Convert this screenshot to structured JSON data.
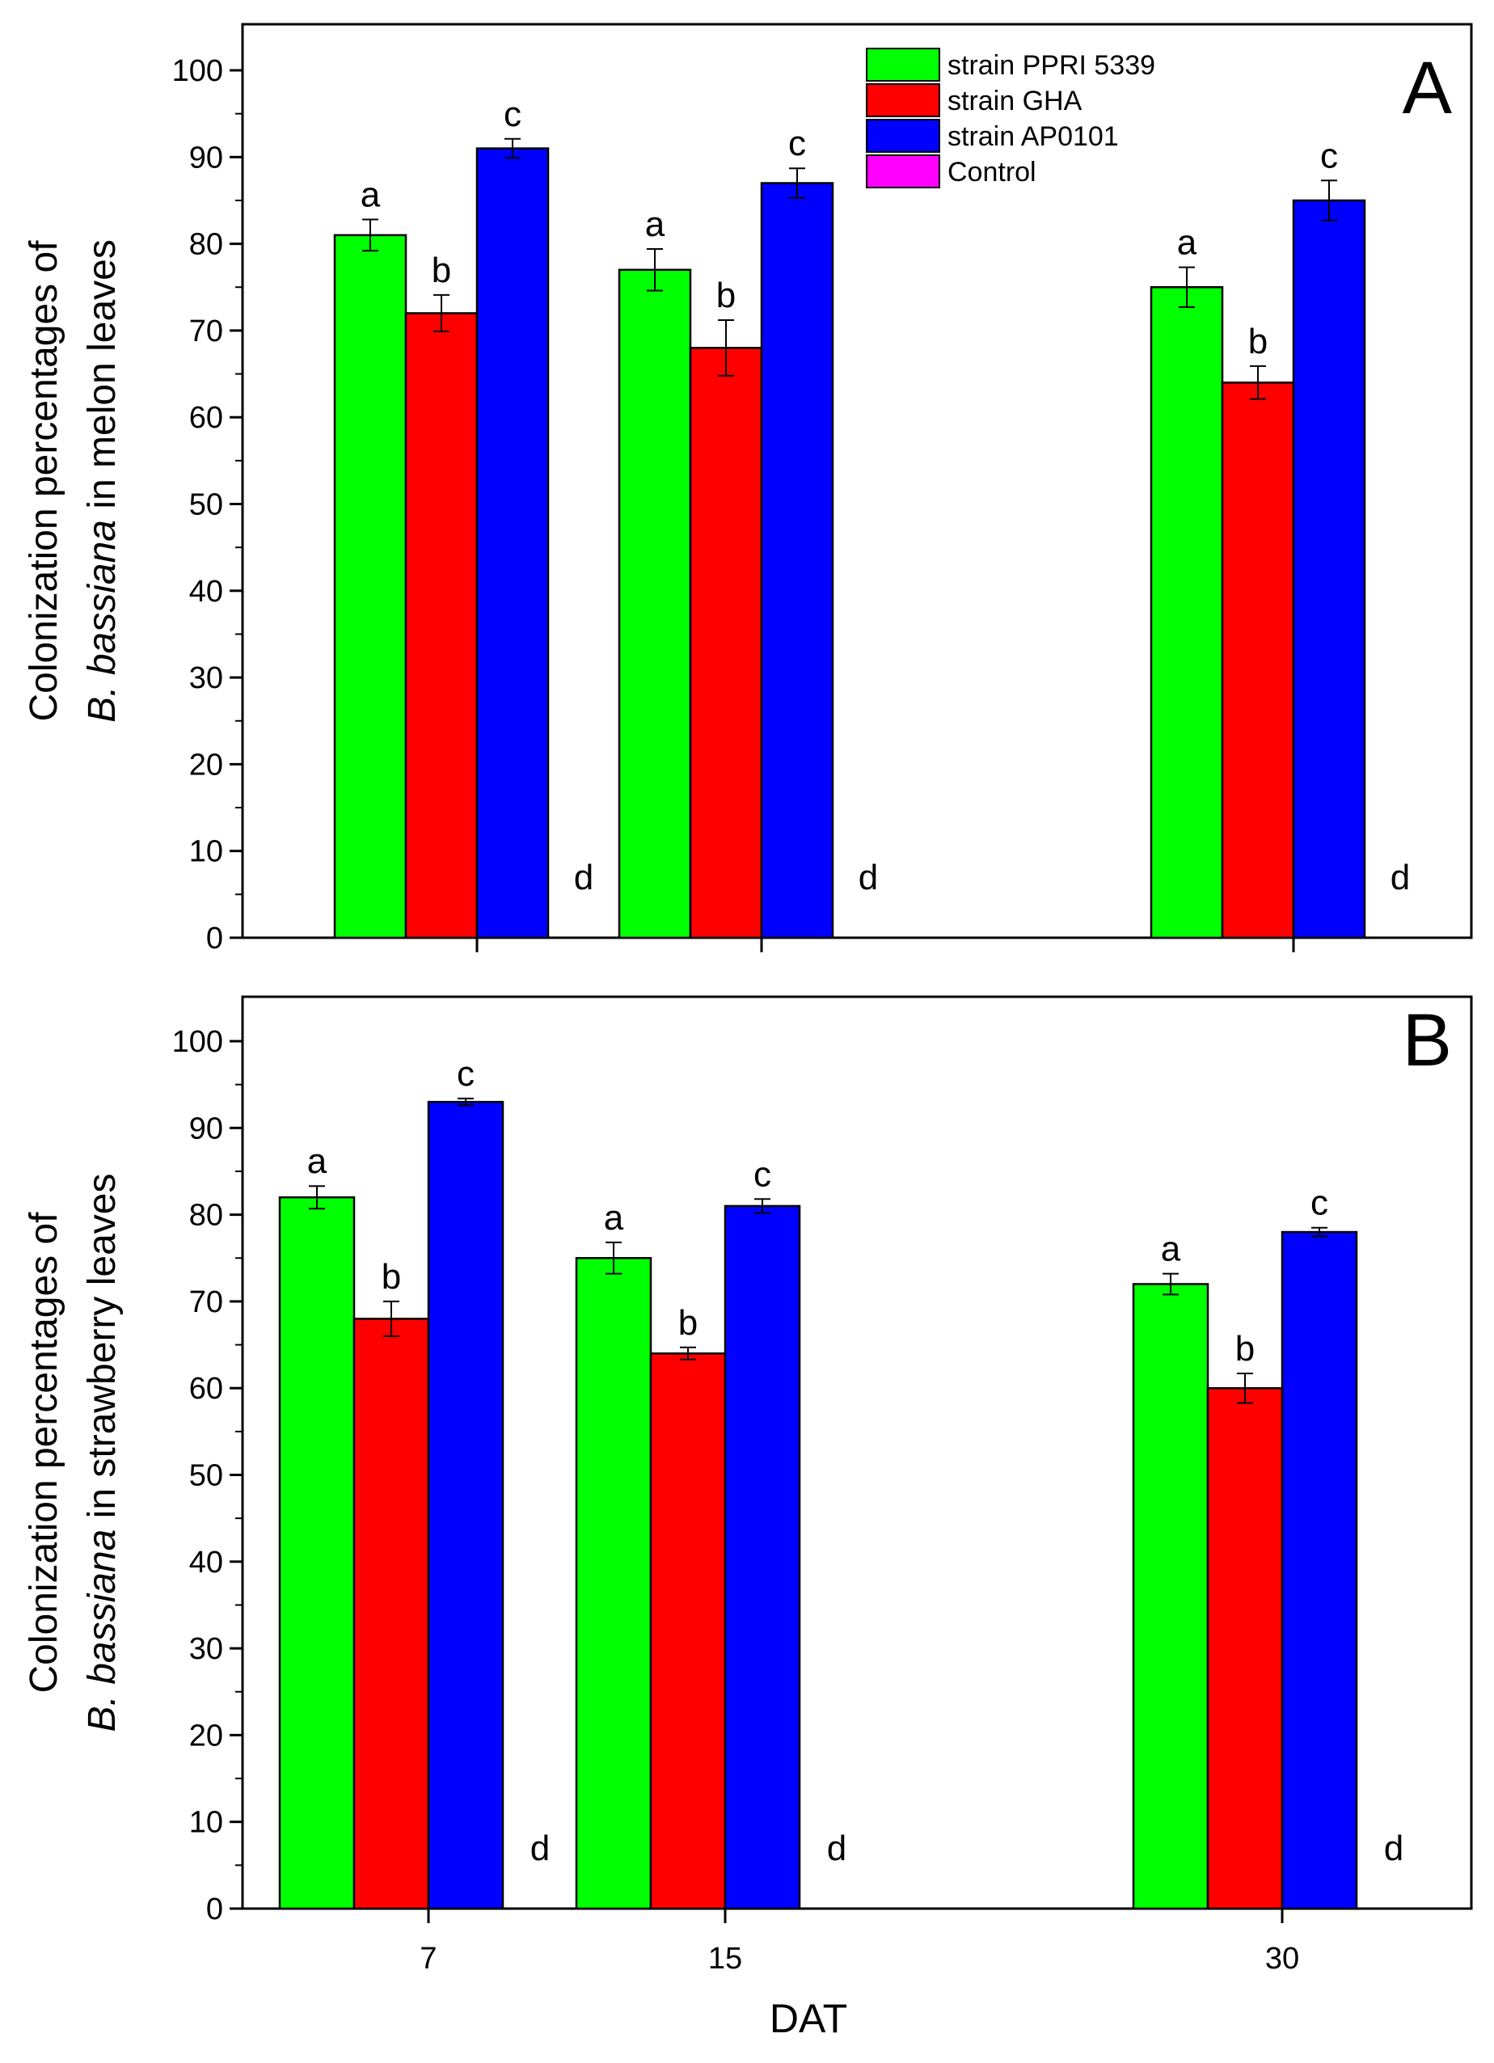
{
  "figure": {
    "xlabel": "DAT",
    "legend": {
      "placement": "top-center",
      "entries": [
        {
          "label": "strain PPRI 5339",
          "color": "#00ff00"
        },
        {
          "label": "strain GHA",
          "color": "#ff0000"
        },
        {
          "label": "strain AP0101",
          "color": "#0000ff"
        },
        {
          "label": "Control",
          "color": "#ff00ff"
        }
      ]
    }
  },
  "chart_data": [
    {
      "type": "bar",
      "panel_label": "A",
      "ylabel_lines": [
        [
          {
            "text": "Colonization percentages of",
            "italic": false
          }
        ],
        [
          {
            "text": "B. bassiana",
            "italic": true
          },
          {
            "text": " in melon leaves",
            "italic": false
          }
        ]
      ],
      "categories": [
        "7",
        "15",
        "30"
      ],
      "show_tick_labels": false,
      "ylim": [
        0,
        105
      ],
      "yticks": [
        0,
        10,
        20,
        30,
        40,
        50,
        60,
        70,
        80,
        90,
        100
      ],
      "series": [
        {
          "name": "strain PPRI 5339",
          "color": "#00ff00",
          "values": [
            81,
            77,
            75
          ],
          "errors": [
            1.8,
            2.4,
            2.3
          ],
          "letters": [
            "a",
            "a",
            "a"
          ]
        },
        {
          "name": "strain GHA",
          "color": "#ff0000",
          "values": [
            72,
            68,
            64
          ],
          "errors": [
            2.1,
            3.2,
            1.9
          ],
          "letters": [
            "b",
            "b",
            "b"
          ]
        },
        {
          "name": "strain AP0101",
          "color": "#0000ff",
          "values": [
            91,
            87,
            85
          ],
          "errors": [
            1.1,
            1.7,
            2.3
          ],
          "letters": [
            "c",
            "c",
            "c"
          ]
        },
        {
          "name": "Control",
          "color": "#ff00ff",
          "values": [
            0,
            0,
            0
          ],
          "errors": [
            0,
            0,
            0
          ],
          "letters": [
            "d",
            "d",
            "d"
          ]
        }
      ]
    },
    {
      "type": "bar",
      "panel_label": "B",
      "ylabel_lines": [
        [
          {
            "text": "Colonization percentages of",
            "italic": false
          }
        ],
        [
          {
            "text": "B. bassiana",
            "italic": true
          },
          {
            "text": " in strawberry leaves",
            "italic": false
          }
        ]
      ],
      "categories": [
        "7",
        "15",
        "30"
      ],
      "show_tick_labels": true,
      "ylim": [
        0,
        105
      ],
      "yticks": [
        0,
        10,
        20,
        30,
        40,
        50,
        60,
        70,
        80,
        90,
        100
      ],
      "series": [
        {
          "name": "strain PPRI 5339",
          "color": "#00ff00",
          "values": [
            82,
            75,
            72
          ],
          "errors": [
            1.3,
            1.8,
            1.2
          ],
          "letters": [
            "a",
            "a",
            "a"
          ]
        },
        {
          "name": "strain GHA",
          "color": "#ff0000",
          "values": [
            68,
            64,
            60
          ],
          "errors": [
            2.0,
            0.7,
            1.7
          ],
          "letters": [
            "b",
            "b",
            "b"
          ]
        },
        {
          "name": "strain AP0101",
          "color": "#0000ff",
          "values": [
            93,
            81,
            78
          ],
          "errors": [
            0.4,
            0.8,
            0.5
          ],
          "letters": [
            "c",
            "c",
            "c"
          ]
        },
        {
          "name": "Control",
          "color": "#ff00ff",
          "values": [
            0,
            0,
            0
          ],
          "errors": [
            0,
            0,
            0
          ],
          "letters": [
            "d",
            "d",
            "d"
          ]
        }
      ]
    }
  ]
}
